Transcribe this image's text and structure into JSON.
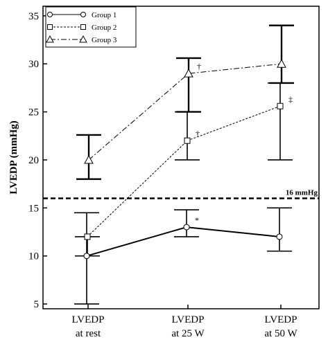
{
  "chart_data": {
    "type": "line",
    "title": "",
    "xlabel": "",
    "ylabel": "LVEDP (mmHg)",
    "ylim": [
      4.5,
      36
    ],
    "yticks": [
      5,
      10,
      15,
      20,
      25,
      30,
      35
    ],
    "grid": false,
    "legend_position": "top-left",
    "categories": [
      [
        "LVEDP",
        "at rest"
      ],
      [
        "LVEDP",
        "at 25 W"
      ],
      [
        "LVEDP",
        "at 50 W"
      ]
    ],
    "series": [
      {
        "name": "Group 1",
        "line_style": "solid",
        "marker": "circle",
        "values": [
          10,
          13,
          12
        ],
        "error_low": [
          5,
          12,
          10.5
        ],
        "error_high": [
          14.5,
          14.8,
          15
        ],
        "annotations": [
          "",
          "*",
          ""
        ]
      },
      {
        "name": "Group 2",
        "line_style": "dashed",
        "marker": "square",
        "values": [
          12,
          22,
          25.6
        ],
        "error_low": [
          10,
          20,
          20
        ],
        "error_high": [
          12,
          25,
          28
        ],
        "annotations": [
          "",
          "†",
          "‡"
        ]
      },
      {
        "name": "Group 3",
        "line_style": "dashdot",
        "marker": "triangle",
        "values": [
          20,
          29,
          30
        ],
        "error_low": [
          18,
          25,
          28
        ],
        "error_high": [
          22.6,
          30.6,
          34
        ],
        "annotations": [
          "",
          "†",
          ""
        ]
      }
    ],
    "reference_line": {
      "value": 16,
      "label": "16 mmHg",
      "style": "dashed"
    }
  }
}
